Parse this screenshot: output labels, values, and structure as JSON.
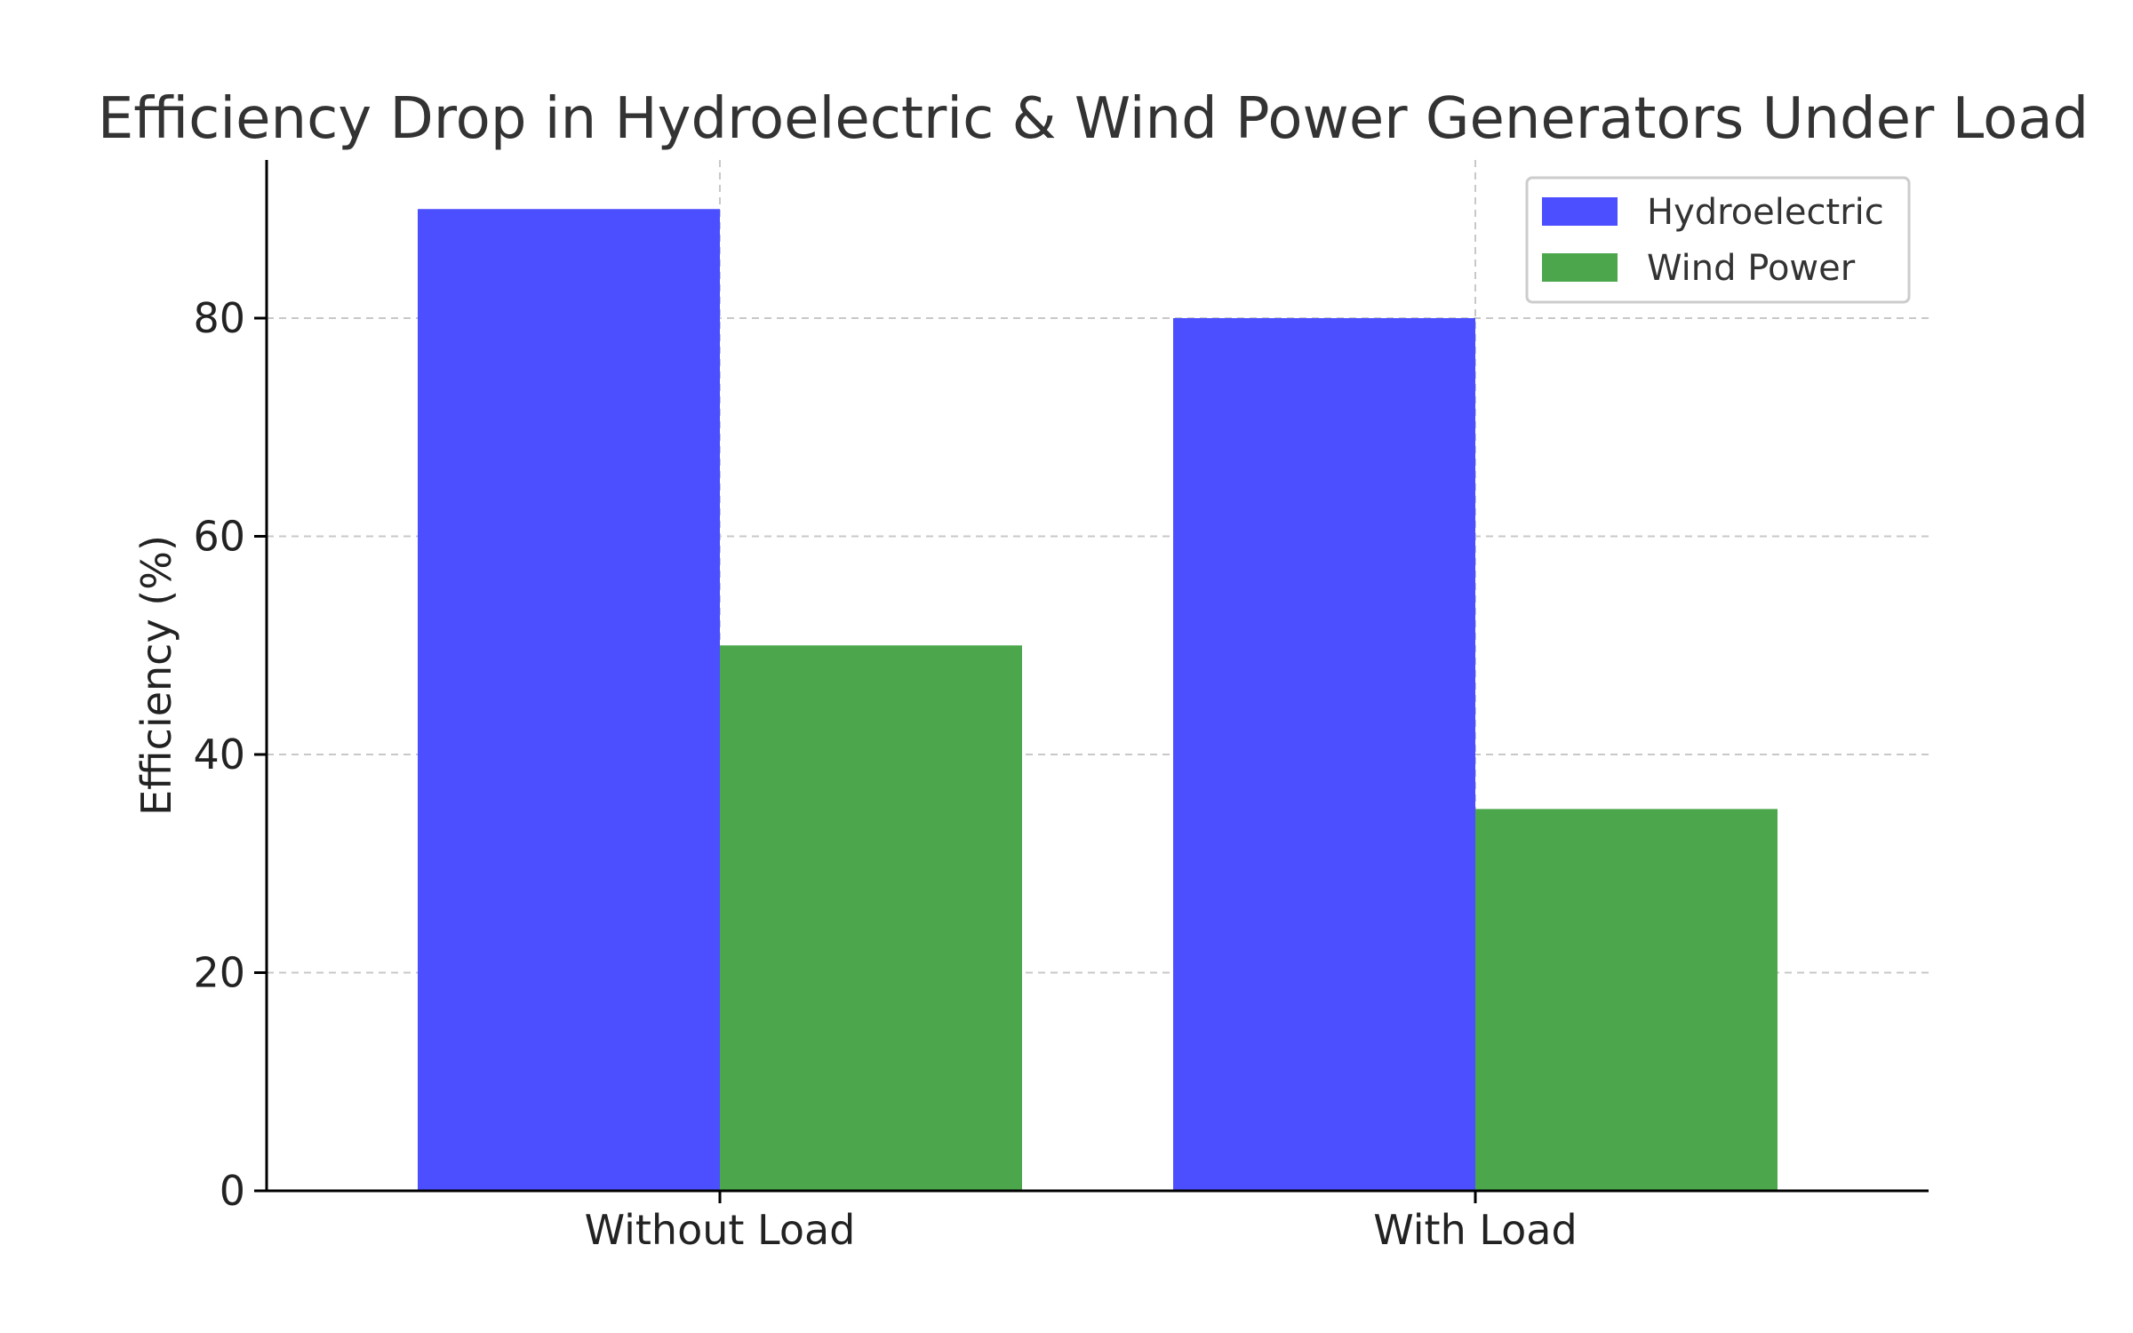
{
  "chart_data": {
    "type": "bar",
    "title": "Efficiency Drop in Hydroelectric & Wind Power Generators Under Load",
    "xlabel": "",
    "ylabel": "Efficiency (%)",
    "categories": [
      "Without Load",
      "With Load"
    ],
    "series": [
      {
        "name": "Hydroelectric",
        "values": [
          90,
          80
        ],
        "color": "#4b4fff"
      },
      {
        "name": "Wind Power",
        "values": [
          50,
          35
        ],
        "color": "#4ca64c"
      }
    ],
    "ylim": [
      0,
      94.5
    ],
    "yticks": [
      0,
      20,
      40,
      60,
      80
    ],
    "grid": true,
    "legend_position": "top-right"
  }
}
